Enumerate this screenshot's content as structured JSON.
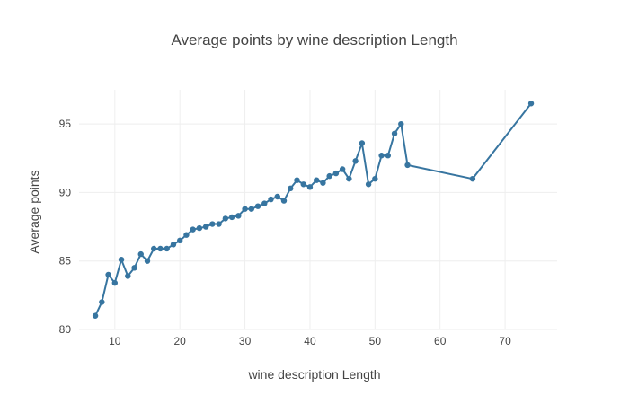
{
  "chart_data": {
    "type": "line",
    "title": "Average points by wine description Length",
    "xlabel": "wine description Length",
    "ylabel": "Average points",
    "xlim": [
      4.5,
      78
    ],
    "ylim": [
      80,
      97.5
    ],
    "x_ticks": [
      10,
      20,
      30,
      40,
      50,
      60,
      70
    ],
    "y_ticks": [
      80,
      85,
      90,
      95
    ],
    "grid": true,
    "line_color": "#3775a0",
    "series": [
      {
        "x": [
          7,
          8,
          9,
          10,
          11,
          12,
          13,
          14,
          15,
          16,
          17,
          18,
          19,
          20,
          21,
          22,
          23,
          24,
          25,
          26,
          27,
          28,
          29,
          30,
          31,
          32,
          33,
          34,
          35,
          36,
          37,
          38,
          39,
          40,
          41,
          42,
          43,
          44,
          45,
          46,
          47,
          48,
          49,
          50,
          51,
          52,
          53,
          54,
          55,
          65,
          74
        ],
        "y": [
          81.0,
          82.0,
          84.0,
          83.4,
          85.1,
          83.9,
          84.5,
          85.5,
          85.0,
          85.9,
          85.9,
          85.9,
          86.2,
          86.5,
          86.9,
          87.3,
          87.4,
          87.5,
          87.7,
          87.7,
          88.1,
          88.2,
          88.3,
          88.8,
          88.8,
          89.0,
          89.2,
          89.5,
          89.7,
          89.4,
          90.3,
          90.9,
          90.6,
          90.4,
          90.9,
          90.7,
          91.2,
          91.4,
          91.7,
          91.0,
          92.3,
          93.6,
          90.6,
          91.0,
          92.7,
          92.7,
          94.3,
          95.0,
          92.0,
          91.0,
          96.5
        ]
      }
    ]
  }
}
